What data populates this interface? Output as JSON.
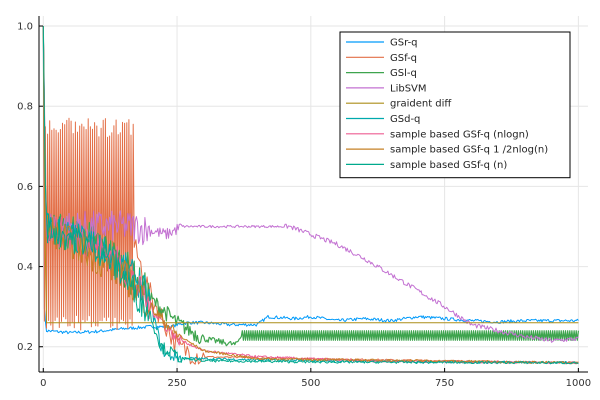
{
  "chart_data": {
    "type": "line",
    "title": "",
    "xlabel": "",
    "ylabel": "",
    "xlim": [
      -8,
      1018
    ],
    "ylim": [
      0.137,
      1.025
    ],
    "xticks": [
      0,
      250,
      500,
      750,
      1000
    ],
    "xtick_labels": [
      "0",
      "250",
      "500",
      "750",
      "1000"
    ],
    "yticks": [
      0.2,
      0.4,
      0.6,
      0.8,
      1.0
    ],
    "ytick_labels": [
      "0.2",
      "0.4",
      "0.6",
      "0.8",
      "1.0"
    ],
    "grid": true,
    "legend_position": "top-right",
    "series": [
      {
        "name": "GSr-q",
        "color": "#009AFA",
        "style": "noisy",
        "points": [
          [
            0,
            1.0
          ],
          [
            2,
            0.3
          ],
          [
            5,
            0.24
          ],
          [
            50,
            0.235
          ],
          [
            100,
            0.238
          ],
          [
            150,
            0.245
          ],
          [
            200,
            0.25
          ],
          [
            240,
            0.25
          ],
          [
            250,
            0.255
          ],
          [
            270,
            0.26
          ],
          [
            300,
            0.26
          ],
          [
            350,
            0.255
          ],
          [
            400,
            0.255
          ],
          [
            420,
            0.275
          ],
          [
            470,
            0.27
          ],
          [
            500,
            0.275
          ],
          [
            550,
            0.265
          ],
          [
            600,
            0.27
          ],
          [
            650,
            0.265
          ],
          [
            700,
            0.275
          ],
          [
            750,
            0.27
          ],
          [
            800,
            0.265
          ],
          [
            850,
            0.262
          ],
          [
            900,
            0.265
          ],
          [
            1000,
            0.265
          ]
        ]
      },
      {
        "name": "GSf-q",
        "color": "#E36F47",
        "style": "spiky",
        "points": [
          [
            0,
            1.0
          ],
          [
            5,
            0.5
          ],
          [
            165,
            0.5
          ],
          [
            170,
            0.45
          ],
          [
            200,
            0.33
          ],
          [
            250,
            0.2
          ],
          [
            280,
            0.185
          ],
          [
            300,
            0.175
          ],
          [
            400,
            0.172
          ],
          [
            600,
            0.168
          ],
          [
            800,
            0.164
          ],
          [
            1000,
            0.16
          ]
        ]
      },
      {
        "name": "GSl-q",
        "color": "#3EA44E",
        "style": "band",
        "points": [
          [
            0,
            1.0
          ],
          [
            5,
            0.5
          ],
          [
            100,
            0.46
          ],
          [
            150,
            0.4
          ],
          [
            200,
            0.32
          ],
          [
            250,
            0.26
          ],
          [
            300,
            0.22
          ],
          [
            340,
            0.21
          ],
          [
            360,
            0.205
          ],
          [
            370,
            0.228
          ],
          [
            1000,
            0.228
          ]
        ]
      },
      {
        "name": "LibSVM",
        "color": "#C371D2",
        "style": "noisy",
        "points": [
          [
            0,
            1.0
          ],
          [
            5,
            0.5
          ],
          [
            150,
            0.5
          ],
          [
            165,
            0.5
          ],
          [
            200,
            0.49
          ],
          [
            230,
            0.48
          ],
          [
            260,
            0.5
          ],
          [
            300,
            0.5
          ],
          [
            460,
            0.5
          ],
          [
            500,
            0.48
          ],
          [
            550,
            0.455
          ],
          [
            600,
            0.42
          ],
          [
            650,
            0.38
          ],
          [
            700,
            0.34
          ],
          [
            750,
            0.3
          ],
          [
            800,
            0.255
          ],
          [
            850,
            0.24
          ],
          [
            900,
            0.225
          ],
          [
            950,
            0.215
          ],
          [
            1000,
            0.22
          ]
        ]
      },
      {
        "name": "graident diff",
        "color": "#AC8D18",
        "style": "flat",
        "points": [
          [
            0,
            1.0
          ],
          [
            3,
            0.5
          ],
          [
            6,
            0.26
          ],
          [
            1000,
            0.26
          ]
        ]
      },
      {
        "name": "GSd-q",
        "color": "#00A9AD",
        "style": "noisy",
        "points": [
          [
            0,
            1.0
          ],
          [
            5,
            0.5
          ],
          [
            100,
            0.45
          ],
          [
            150,
            0.4
          ],
          [
            180,
            0.36
          ],
          [
            200,
            0.31
          ],
          [
            220,
            0.2
          ],
          [
            230,
            0.18
          ],
          [
            260,
            0.172
          ],
          [
            300,
            0.17
          ],
          [
            500,
            0.165
          ],
          [
            1000,
            0.16
          ]
        ]
      },
      {
        "name": "sample based GSf-q (nlogn)",
        "color": "#ED5D92",
        "style": "noisy",
        "points": [
          [
            0,
            1.0
          ],
          [
            5,
            0.5
          ],
          [
            100,
            0.45
          ],
          [
            150,
            0.4
          ],
          [
            200,
            0.3
          ],
          [
            250,
            0.22
          ],
          [
            300,
            0.19
          ],
          [
            400,
            0.175
          ],
          [
            600,
            0.165
          ],
          [
            1000,
            0.16
          ]
        ]
      },
      {
        "name": "sample based GSf-q 1 /2nlog(n)",
        "color": "#C68125",
        "style": "noisy",
        "points": [
          [
            0,
            1.0
          ],
          [
            5,
            0.5
          ],
          [
            100,
            0.42
          ],
          [
            150,
            0.38
          ],
          [
            200,
            0.3
          ],
          [
            250,
            0.23
          ],
          [
            300,
            0.19
          ],
          [
            350,
            0.18
          ],
          [
            400,
            0.17
          ],
          [
            1000,
            0.16
          ]
        ]
      },
      {
        "name": "sample based GSf-q (n)",
        "color": "#00A98D",
        "style": "noisy",
        "points": [
          [
            0,
            1.0
          ],
          [
            5,
            0.5
          ],
          [
            100,
            0.45
          ],
          [
            150,
            0.38
          ],
          [
            200,
            0.28
          ],
          [
            220,
            0.2
          ],
          [
            260,
            0.17
          ],
          [
            300,
            0.165
          ],
          [
            500,
            0.162
          ],
          [
            1000,
            0.16
          ]
        ]
      }
    ]
  }
}
